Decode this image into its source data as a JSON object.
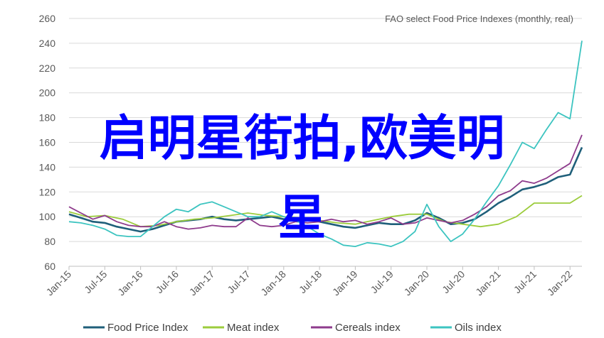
{
  "overlay": {
    "line1": "启明星街拍,欧美明",
    "line2": "星"
  },
  "colors": {
    "food": "#1f5f7a",
    "meat": "#9ccc3c",
    "cereals": "#8e3b8c",
    "oils": "#3cc4c0",
    "grid": "#d9d9d9",
    "text": "#595959",
    "overlay": "#0000ff"
  },
  "chart_data": {
    "type": "line",
    "note": "FAO select Food Price Indexes (monthly, real)",
    "ylim": [
      60,
      260
    ],
    "yticks": [
      "60",
      "80",
      "100",
      "120",
      "140",
      "160",
      "180",
      "200",
      "220",
      "240",
      "260"
    ],
    "xlim": [
      "2015-01",
      "2022-03"
    ],
    "xticks": [
      "Jan-15",
      "Jul-15",
      "Jan-16",
      "Jul-16",
      "Jan-17",
      "Jul-17",
      "Jan-18",
      "Jul-18",
      "Jan-19",
      "Jul-19",
      "Jan-20",
      "Jul-20",
      "Jan-21",
      "Jul-21",
      "Jan-22"
    ],
    "legend_position": "bottom",
    "series": [
      {
        "name": "Food Price Index",
        "color_key": "food",
        "points": [
          [
            "2015-01",
            102
          ],
          [
            "2015-03",
            99
          ],
          [
            "2015-05",
            96
          ],
          [
            "2015-07",
            95
          ],
          [
            "2015-09",
            92
          ],
          [
            "2015-11",
            90
          ],
          [
            "2016-01",
            88
          ],
          [
            "2016-03",
            90
          ],
          [
            "2016-05",
            93
          ],
          [
            "2016-07",
            96
          ],
          [
            "2016-09",
            97
          ],
          [
            "2016-11",
            98
          ],
          [
            "2017-01",
            100
          ],
          [
            "2017-03",
            98
          ],
          [
            "2017-05",
            97
          ],
          [
            "2017-07",
            98
          ],
          [
            "2017-09",
            99
          ],
          [
            "2017-11",
            100
          ],
          [
            "2018-01",
            98
          ],
          [
            "2018-03",
            99
          ],
          [
            "2018-05",
            98
          ],
          [
            "2018-07",
            96
          ],
          [
            "2018-09",
            94
          ],
          [
            "2018-11",
            92
          ],
          [
            "2019-01",
            91
          ],
          [
            "2019-03",
            93
          ],
          [
            "2019-05",
            95
          ],
          [
            "2019-07",
            94
          ],
          [
            "2019-09",
            94
          ],
          [
            "2019-11",
            97
          ],
          [
            "2020-01",
            103
          ],
          [
            "2020-03",
            99
          ],
          [
            "2020-05",
            94
          ],
          [
            "2020-07",
            95
          ],
          [
            "2020-09",
            98
          ],
          [
            "2020-11",
            104
          ],
          [
            "2021-01",
            111
          ],
          [
            "2021-03",
            116
          ],
          [
            "2021-05",
            122
          ],
          [
            "2021-07",
            124
          ],
          [
            "2021-09",
            127
          ],
          [
            "2021-11",
            132
          ],
          [
            "2022-01",
            134
          ],
          [
            "2022-03",
            156
          ]
        ]
      },
      {
        "name": "Meat index",
        "color_key": "meat",
        "points": [
          [
            "2015-01",
            104
          ],
          [
            "2015-04",
            100
          ],
          [
            "2015-07",
            101
          ],
          [
            "2015-10",
            98
          ],
          [
            "2016-01",
            92
          ],
          [
            "2016-04",
            93
          ],
          [
            "2016-07",
            96
          ],
          [
            "2016-10",
            98
          ],
          [
            "2017-01",
            99
          ],
          [
            "2017-04",
            101
          ],
          [
            "2017-07",
            103
          ],
          [
            "2017-10",
            101
          ],
          [
            "2018-01",
            100
          ],
          [
            "2018-04",
            99
          ],
          [
            "2018-07",
            97
          ],
          [
            "2018-10",
            95
          ],
          [
            "2019-01",
            94
          ],
          [
            "2019-04",
            97
          ],
          [
            "2019-07",
            100
          ],
          [
            "2019-10",
            102
          ],
          [
            "2020-01",
            102
          ],
          [
            "2020-04",
            96
          ],
          [
            "2020-07",
            94
          ],
          [
            "2020-10",
            92
          ],
          [
            "2021-01",
            94
          ],
          [
            "2021-04",
            100
          ],
          [
            "2021-07",
            111
          ],
          [
            "2021-10",
            111
          ],
          [
            "2022-01",
            111
          ],
          [
            "2022-03",
            117
          ]
        ]
      },
      {
        "name": "Cereals index",
        "color_key": "cereals",
        "points": [
          [
            "2015-01",
            108
          ],
          [
            "2015-03",
            103
          ],
          [
            "2015-05",
            98
          ],
          [
            "2015-07",
            101
          ],
          [
            "2015-09",
            96
          ],
          [
            "2015-11",
            93
          ],
          [
            "2016-01",
            92
          ],
          [
            "2016-03",
            92
          ],
          [
            "2016-05",
            96
          ],
          [
            "2016-07",
            92
          ],
          [
            "2016-09",
            90
          ],
          [
            "2016-11",
            91
          ],
          [
            "2017-01",
            93
          ],
          [
            "2017-03",
            92
          ],
          [
            "2017-05",
            92
          ],
          [
            "2017-07",
            99
          ],
          [
            "2017-09",
            93
          ],
          [
            "2017-11",
            92
          ],
          [
            "2018-01",
            93
          ],
          [
            "2018-03",
            96
          ],
          [
            "2018-05",
            95
          ],
          [
            "2018-07",
            96
          ],
          [
            "2018-09",
            98
          ],
          [
            "2018-11",
            96
          ],
          [
            "2019-01",
            97
          ],
          [
            "2019-03",
            94
          ],
          [
            "2019-05",
            96
          ],
          [
            "2019-07",
            99
          ],
          [
            "2019-09",
            94
          ],
          [
            "2019-11",
            95
          ],
          [
            "2020-01",
            99
          ],
          [
            "2020-03",
            97
          ],
          [
            "2020-05",
            95
          ],
          [
            "2020-07",
            97
          ],
          [
            "2020-09",
            102
          ],
          [
            "2020-11",
            108
          ],
          [
            "2021-01",
            117
          ],
          [
            "2021-03",
            121
          ],
          [
            "2021-05",
            129
          ],
          [
            "2021-07",
            127
          ],
          [
            "2021-09",
            131
          ],
          [
            "2021-11",
            137
          ],
          [
            "2022-01",
            143
          ],
          [
            "2022-03",
            166
          ]
        ]
      },
      {
        "name": "Oils index",
        "color_key": "oils",
        "points": [
          [
            "2015-01",
            96
          ],
          [
            "2015-03",
            95
          ],
          [
            "2015-05",
            93
          ],
          [
            "2015-07",
            90
          ],
          [
            "2015-09",
            85
          ],
          [
            "2015-11",
            84
          ],
          [
            "2016-01",
            84
          ],
          [
            "2016-03",
            92
          ],
          [
            "2016-05",
            100
          ],
          [
            "2016-07",
            106
          ],
          [
            "2016-09",
            104
          ],
          [
            "2016-11",
            110
          ],
          [
            "2017-01",
            112
          ],
          [
            "2017-03",
            108
          ],
          [
            "2017-05",
            104
          ],
          [
            "2017-07",
            100
          ],
          [
            "2017-09",
            100
          ],
          [
            "2017-11",
            104
          ],
          [
            "2018-01",
            100
          ],
          [
            "2018-03",
            97
          ],
          [
            "2018-05",
            92
          ],
          [
            "2018-07",
            86
          ],
          [
            "2018-09",
            82
          ],
          [
            "2018-11",
            77
          ],
          [
            "2019-01",
            76
          ],
          [
            "2019-03",
            79
          ],
          [
            "2019-05",
            78
          ],
          [
            "2019-07",
            76
          ],
          [
            "2019-09",
            80
          ],
          [
            "2019-11",
            88
          ],
          [
            "2020-01",
            110
          ],
          [
            "2020-03",
            92
          ],
          [
            "2020-05",
            80
          ],
          [
            "2020-07",
            86
          ],
          [
            "2020-09",
            98
          ],
          [
            "2020-11",
            112
          ],
          [
            "2021-01",
            125
          ],
          [
            "2021-03",
            142
          ],
          [
            "2021-05",
            160
          ],
          [
            "2021-07",
            155
          ],
          [
            "2021-09",
            170
          ],
          [
            "2021-11",
            184
          ],
          [
            "2022-01",
            179
          ],
          [
            "2022-03",
            242
          ]
        ]
      }
    ]
  }
}
